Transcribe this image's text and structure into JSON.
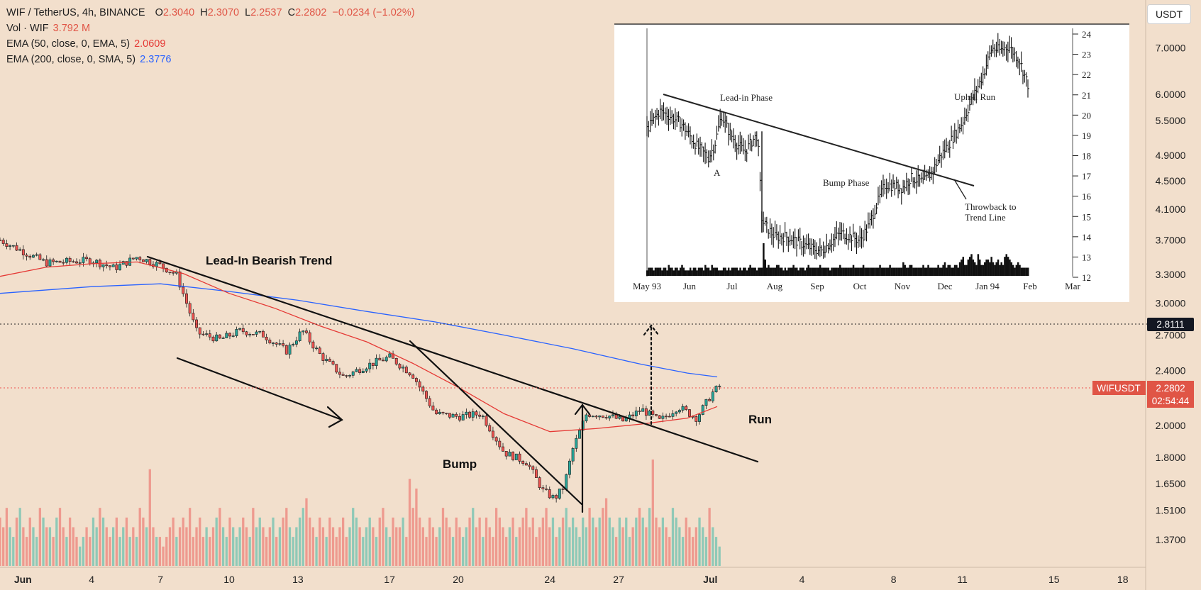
{
  "header": {
    "symbol_line": "WIF / TetherUS, 4h, BINANCE",
    "open_label": "O",
    "open": "2.3040",
    "high_label": "H",
    "high": "2.3070",
    "low_label": "L",
    "low": "2.2537",
    "close_label": "C",
    "close": "2.2802",
    "change": "−0.0234 (−1.02%)",
    "vol_label": "Vol · WIF",
    "vol_value": "3.792 M",
    "ema50_label": "EMA (50, close, 0, EMA, 5)",
    "ema50_value": "2.0609",
    "ema200_label": "EMA (200, close, 0, SMA, 5)",
    "ema200_value": "2.3776"
  },
  "currency_button": "USDT",
  "colors": {
    "up": "#26a69a",
    "down": "#ef5350",
    "ema50": "#e53935",
    "ema200": "#2962ff",
    "bg": "#f2dfcc"
  },
  "chart_data": {
    "type": "candlestick",
    "title": "WIF / TetherUS, 4h, BINANCE",
    "scale": "log",
    "ylim": [
      1.25,
      8.2
    ],
    "y_ticks": [
      "7.0000",
      "6.0000",
      "5.5000",
      "4.9000",
      "4.5000",
      "4.1000",
      "3.7000",
      "3.3000",
      "3.0000",
      "2.7000",
      "2.4000",
      "2.0000",
      "1.8000",
      "1.6500",
      "1.5100",
      "1.3700"
    ],
    "x_ticks": [
      "Jun",
      "4",
      "7",
      "10",
      "13",
      "17",
      "20",
      "24",
      "27",
      "Jul",
      "4",
      "8",
      "11",
      "15",
      "18"
    ],
    "x_tick_days": [
      1,
      4,
      7,
      10,
      13,
      17,
      20,
      24,
      27,
      31,
      35,
      39,
      42,
      46,
      49
    ],
    "xlim_days": [
      0,
      50
    ],
    "price_label": {
      "text": "WIFUSDT",
      "value": "2.2802",
      "countdown": "02:54:44"
    },
    "crosshair": {
      "value": "2.8111"
    },
    "close_path": [
      [
        0,
        3.7
      ],
      [
        2,
        3.43
      ],
      [
        4,
        3.46
      ],
      [
        5,
        3.37
      ],
      [
        6,
        3.5
      ],
      [
        7,
        3.4
      ],
      [
        7.7,
        3.3
      ],
      [
        8.3,
        2.9
      ],
      [
        8.6,
        2.72
      ],
      [
        9.6,
        2.66
      ],
      [
        10.5,
        2.74
      ],
      [
        11.5,
        2.7
      ],
      [
        12.5,
        2.56
      ],
      [
        13.2,
        2.74
      ],
      [
        14,
        2.52
      ],
      [
        15,
        2.35
      ],
      [
        16,
        2.44
      ],
      [
        17,
        2.51
      ],
      [
        18,
        2.37
      ],
      [
        19,
        2.08
      ],
      [
        20,
        2.06
      ],
      [
        21,
        2.08
      ],
      [
        22,
        1.83
      ],
      [
        23,
        1.77
      ],
      [
        23.7,
        1.61
      ],
      [
        24.2,
        1.57
      ],
      [
        24.6,
        1.63
      ],
      [
        25,
        1.85
      ],
      [
        25.6,
        2.08
      ],
      [
        26.5,
        2.07
      ],
      [
        27.2,
        2.03
      ],
      [
        28,
        2.11
      ],
      [
        28.8,
        2.03
      ],
      [
        29.6,
        2.13
      ],
      [
        30.4,
        2.05
      ],
      [
        31.1,
        2.23
      ],
      [
        31.4,
        2.28
      ]
    ],
    "ema50": [
      [
        0,
        3.28
      ],
      [
        2,
        3.38
      ],
      [
        4,
        3.42
      ],
      [
        6,
        3.44
      ],
      [
        8,
        3.31
      ],
      [
        10,
        3.1
      ],
      [
        12,
        2.95
      ],
      [
        14,
        2.78
      ],
      [
        16,
        2.64
      ],
      [
        18,
        2.46
      ],
      [
        20,
        2.27
      ],
      [
        22,
        2.08
      ],
      [
        24,
        1.96
      ],
      [
        26,
        1.98
      ],
      [
        28,
        2.01
      ],
      [
        30,
        2.05
      ],
      [
        31.3,
        2.13
      ]
    ],
    "ema200": [
      [
        0,
        3.1
      ],
      [
        4,
        3.17
      ],
      [
        7,
        3.2
      ],
      [
        10,
        3.12
      ],
      [
        13,
        3.03
      ],
      [
        16,
        2.92
      ],
      [
        19,
        2.82
      ],
      [
        22,
        2.7
      ],
      [
        25,
        2.58
      ],
      [
        28,
        2.45
      ],
      [
        30,
        2.38
      ],
      [
        31.3,
        2.35
      ]
    ],
    "volume": [
      5,
      4,
      6,
      4,
      3,
      5,
      6,
      4,
      3,
      5,
      4,
      3,
      6,
      5,
      4,
      4,
      3,
      5,
      6,
      4,
      3,
      5,
      4,
      3,
      2,
      3,
      4,
      3,
      5,
      4,
      6,
      5,
      4,
      3,
      4,
      5,
      3,
      4,
      5,
      3,
      4,
      3,
      6,
      5,
      4,
      10,
      4,
      3,
      3,
      2,
      3,
      4,
      5,
      3,
      4,
      5,
      4,
      6,
      3,
      4,
      5,
      3,
      4,
      3,
      4,
      5,
      6,
      4,
      3,
      5,
      4,
      3,
      4,
      5,
      4,
      3,
      6,
      4,
      5,
      4,
      3,
      4,
      5,
      3,
      4,
      5,
      6,
      4,
      3,
      4,
      5,
      6,
      7,
      5,
      4,
      3,
      5,
      4,
      3,
      5,
      4,
      3,
      4,
      5,
      3,
      4,
      6,
      5,
      4,
      3,
      4,
      5,
      4,
      3,
      5,
      6,
      4,
      3,
      5,
      4,
      4,
      5,
      3,
      9,
      6,
      8,
      5,
      4,
      3,
      5,
      4,
      3,
      4,
      6,
      5,
      4,
      3,
      5,
      4,
      3,
      4,
      5,
      6,
      4,
      5,
      3,
      5,
      4,
      3,
      6,
      5,
      4,
      3,
      4,
      5,
      3,
      4,
      5,
      6,
      4,
      5,
      3,
      4,
      5,
      6,
      4,
      5,
      3,
      4,
      5,
      6,
      4,
      5,
      4,
      3,
      5,
      4,
      6,
      5,
      4,
      5,
      6,
      7,
      5,
      4,
      3,
      5,
      4,
      5,
      3,
      4,
      5,
      6,
      5,
      4,
      6,
      11,
      5,
      4,
      5,
      4,
      3,
      6,
      5,
      4,
      3,
      5,
      4,
      3,
      4,
      5,
      4,
      3,
      6,
      4,
      3,
      2
    ],
    "annotations": [
      "Lead-In Bearish Trend",
      "Bump",
      "Run"
    ]
  },
  "inset": {
    "type": "bar",
    "months": [
      "May 93",
      "Jun",
      "Jul",
      "Aug",
      "Sep",
      "Oct",
      "Nov",
      "Dec",
      "Jan 94",
      "Feb",
      "Mar"
    ],
    "y_ticks": [
      "24",
      "23",
      "22",
      "21",
      "20",
      "19",
      "18",
      "17",
      "16",
      "15",
      "14",
      "13",
      "12"
    ],
    "labels": {
      "lead_in": "Lead-in Phase",
      "a": "A",
      "bump": "Bump Phase",
      "uphill": "Uphill Run",
      "throwback_1": "Throwback to",
      "throwback_2": "Trend Line"
    },
    "price_path": [
      [
        0,
        19.3
      ],
      [
        0.3,
        20.2
      ],
      [
        0.5,
        20.0
      ],
      [
        0.8,
        19.6
      ],
      [
        1.0,
        19.0
      ],
      [
        1.2,
        18.4
      ],
      [
        1.45,
        17.9
      ],
      [
        1.6,
        18.6
      ],
      [
        1.75,
        20.0
      ],
      [
        1.9,
        19.3
      ],
      [
        2.1,
        18.6
      ],
      [
        2.3,
        18.2
      ],
      [
        2.5,
        18.8
      ],
      [
        2.6,
        19.0
      ],
      [
        2.7,
        14.8
      ],
      [
        2.8,
        14.5
      ],
      [
        3.0,
        14.0
      ],
      [
        3.3,
        14.0
      ],
      [
        3.6,
        13.7
      ],
      [
        3.9,
        13.4
      ],
      [
        4.1,
        13.3
      ],
      [
        4.3,
        13.7
      ],
      [
        4.55,
        14.2
      ],
      [
        4.8,
        14.0
      ],
      [
        5.0,
        13.8
      ],
      [
        5.2,
        14.5
      ],
      [
        5.4,
        15.6
      ],
      [
        5.6,
        16.6
      ],
      [
        5.8,
        16.5
      ],
      [
        6.0,
        16.4
      ],
      [
        6.2,
        16.9
      ],
      [
        6.5,
        16.7
      ],
      [
        6.7,
        17.2
      ],
      [
        6.9,
        18.0
      ],
      [
        7.1,
        18.6
      ],
      [
        7.4,
        19.6
      ],
      [
        7.6,
        20.6
      ],
      [
        7.9,
        22.0
      ],
      [
        8.1,
        23.3
      ],
      [
        8.3,
        23.2
      ],
      [
        8.5,
        23.4
      ],
      [
        8.75,
        22.7
      ],
      [
        8.95,
        21.5
      ]
    ],
    "volume": [
      2,
      3,
      3,
      3,
      2,
      3,
      3,
      3,
      3,
      2,
      3,
      3,
      2,
      4,
      3,
      3,
      2,
      3,
      3,
      2,
      3,
      4,
      3,
      2,
      2,
      2,
      3,
      2,
      3,
      3,
      2,
      3,
      3,
      3,
      2,
      4,
      3,
      3,
      2,
      4,
      3,
      3,
      3,
      2,
      2,
      2,
      3,
      3,
      2,
      3,
      2,
      3,
      3,
      3,
      3,
      2,
      3,
      2,
      3,
      3,
      2,
      3,
      4,
      3,
      3,
      3,
      2,
      3,
      3,
      3,
      12,
      6,
      3,
      4,
      3,
      3,
      3,
      3,
      4,
      4,
      3,
      3,
      2,
      3,
      2,
      3,
      3,
      3,
      4,
      3,
      3,
      2,
      3,
      3,
      3,
      2,
      3,
      4,
      3,
      3,
      3,
      3,
      3,
      3,
      4,
      3,
      3,
      3,
      3,
      3,
      2,
      3,
      3,
      3,
      3,
      3,
      4,
      3,
      3,
      3,
      3,
      3,
      3,
      3,
      4,
      3,
      3,
      3,
      3,
      3,
      4,
      3,
      3,
      3,
      3,
      3,
      3,
      3,
      3,
      3,
      4,
      3,
      3,
      3,
      3,
      3,
      4,
      3,
      3,
      3,
      3,
      3,
      3,
      3,
      5,
      4,
      3,
      3,
      4,
      4,
      3,
      3,
      3,
      3,
      3,
      3,
      4,
      3,
      3,
      4,
      3,
      3,
      3,
      3,
      3,
      4,
      3,
      3,
      4,
      5,
      3,
      4,
      4,
      3,
      3,
      4,
      4,
      3,
      5,
      6,
      7,
      4,
      4,
      6,
      7,
      8,
      6,
      5,
      4,
      8,
      6,
      4,
      4,
      5,
      6,
      6,
      5,
      7,
      5,
      4,
      5,
      6,
      4,
      5,
      4,
      7,
      8,
      7,
      6,
      5,
      4,
      3,
      4,
      5,
      4,
      3,
      3,
      3,
      3,
      3
    ]
  }
}
